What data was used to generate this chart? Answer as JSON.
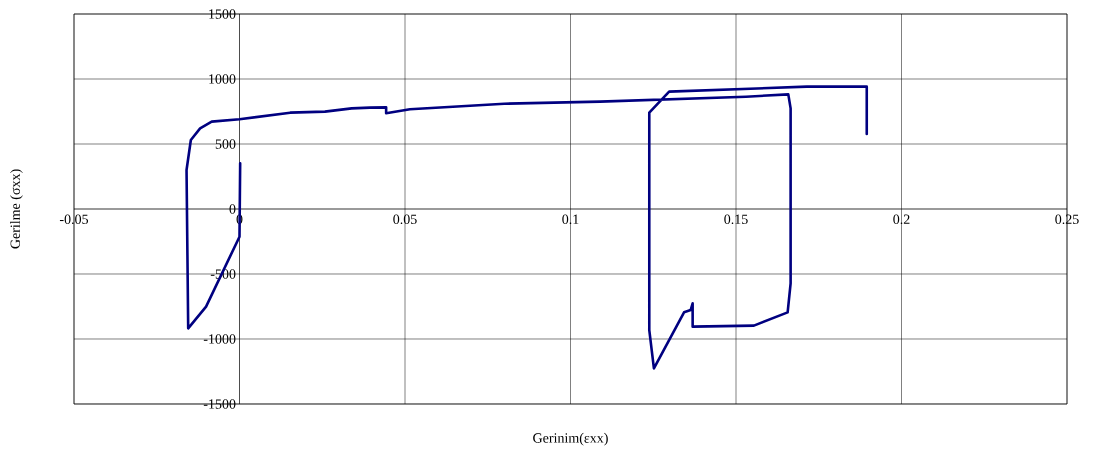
{
  "chart_data": {
    "type": "line",
    "xlabel": "Gerinim(εxx)",
    "ylabel": "Gerilme (σxx)",
    "color": "#000080",
    "grid": true,
    "line_style": "solid",
    "marker": "none",
    "x": [
      0.0002,
      0.0,
      -0.0101,
      -0.0155,
      -0.016,
      -0.0147,
      -0.0119,
      -0.0084,
      0.0,
      0.0153,
      0.0258,
      0.0339,
      0.0394,
      0.0443,
      0.0443,
      0.0515,
      0.08,
      0.1089,
      0.153,
      0.1658,
      0.1665,
      0.1665,
      0.1656,
      0.1554,
      0.1369,
      0.1369,
      0.1363,
      0.1343,
      0.1252,
      0.1238,
      0.1238,
      0.1298,
      0.1714,
      0.1895,
      0.1895
    ],
    "values": [
      351,
      -213,
      -751,
      -918,
      300,
      531,
      620,
      672,
      690,
      741,
      749,
      774,
      780,
      782,
      736,
      767,
      810,
      826,
      864,
      882,
      774,
      -572,
      -795,
      -897,
      -905,
      -726,
      -777,
      -795,
      -1226,
      -931,
      741,
      903,
      941,
      941,
      577
    ],
    "xlim": [
      -0.05,
      0.25
    ],
    "ylim": [
      -1500,
      1500
    ],
    "xticks": [
      -0.05,
      0,
      0.05,
      0.1,
      0.15,
      0.2,
      0.25
    ],
    "yticks": [
      -1500,
      -1000,
      -500,
      0,
      500,
      1000,
      1500
    ]
  }
}
